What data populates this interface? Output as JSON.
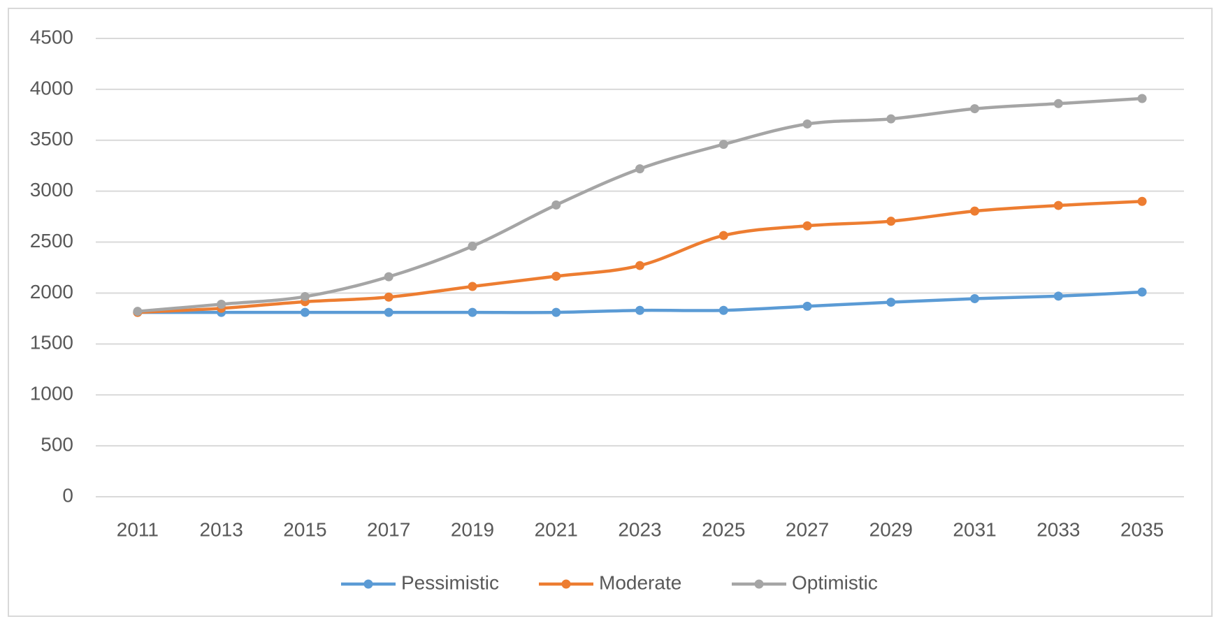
{
  "chart_data": {
    "type": "line",
    "categories": [
      "2011",
      "2013",
      "2015",
      "2017",
      "2019",
      "2021",
      "2023",
      "2025",
      "2027",
      "2029",
      "2031",
      "2033",
      "2035"
    ],
    "series": [
      {
        "name": "Pessimistic",
        "color": "#5b9bd5",
        "values": [
          1810,
          1810,
          1810,
          1810,
          1810,
          1810,
          1830,
          1830,
          1870,
          1910,
          1945,
          1970,
          2010
        ]
      },
      {
        "name": "Moderate",
        "color": "#ed7d31",
        "values": [
          1810,
          1850,
          1915,
          1960,
          2065,
          2165,
          2270,
          2565,
          2660,
          2705,
          2805,
          2860,
          2900
        ]
      },
      {
        "name": "Optimistic",
        "color": "#a5a5a5",
        "values": [
          1820,
          1890,
          1965,
          2160,
          2460,
          2865,
          3220,
          3460,
          3660,
          3710,
          3810,
          3860,
          3910
        ]
      }
    ],
    "ylim": [
      0,
      4500
    ],
    "yticks": [
      0,
      500,
      1000,
      1500,
      2000,
      2500,
      3000,
      3500,
      4000,
      4500
    ],
    "grid": true,
    "legend": "bottom"
  }
}
